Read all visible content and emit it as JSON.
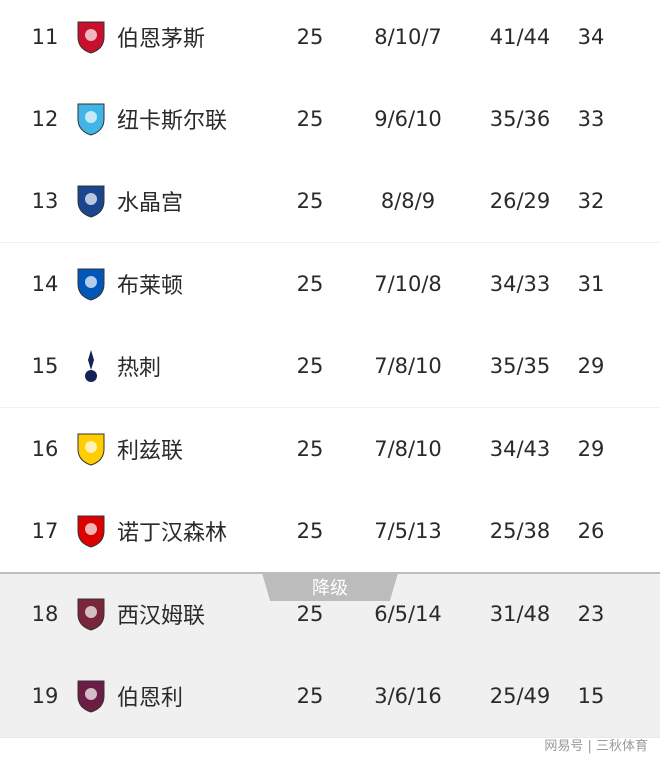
{
  "rows": [
    {
      "rank": "11",
      "team": "伯恩茅斯",
      "played": "25",
      "wdl": "8/10/7",
      "goals": "41/44",
      "points": "34",
      "logo": "bournemouth-crest-icon",
      "color": "#c8102e"
    },
    {
      "rank": "12",
      "team": "纽卡斯尔联",
      "played": "25",
      "wdl": "9/6/10",
      "goals": "35/36",
      "points": "33",
      "logo": "newcastle-crest-icon",
      "color": "#41b6e6"
    },
    {
      "rank": "13",
      "team": "水晶宫",
      "played": "25",
      "wdl": "8/8/9",
      "goals": "26/29",
      "points": "32",
      "logo": "crystal-palace-crest-icon",
      "color": "#1b458f"
    },
    {
      "rank": "14",
      "team": "布莱顿",
      "played": "25",
      "wdl": "7/10/8",
      "goals": "34/33",
      "points": "31",
      "logo": "brighton-crest-icon",
      "color": "#0057b8"
    },
    {
      "rank": "15",
      "team": "热刺",
      "played": "25",
      "wdl": "7/8/10",
      "goals": "35/35",
      "points": "29",
      "logo": "tottenham-crest-icon",
      "color": "#132257"
    },
    {
      "rank": "16",
      "team": "利兹联",
      "played": "25",
      "wdl": "7/8/10",
      "goals": "34/43",
      "points": "29",
      "logo": "leeds-crest-icon",
      "color": "#ffcd00"
    },
    {
      "rank": "17",
      "team": "诺丁汉森林",
      "played": "25",
      "wdl": "7/5/13",
      "goals": "25/38",
      "points": "26",
      "logo": "nottingham-forest-crest-icon",
      "color": "#dd0000"
    },
    {
      "rank": "18",
      "team": "西汉姆联",
      "played": "25",
      "wdl": "6/5/14",
      "goals": "31/48",
      "points": "23",
      "logo": "west-ham-crest-icon",
      "color": "#7a263a"
    },
    {
      "rank": "19",
      "team": "伯恩利",
      "played": "25",
      "wdl": "3/6/16",
      "goals": "25/49",
      "points": "15",
      "logo": "burnley-crest-icon",
      "color": "#6c1d45"
    }
  ],
  "relegation_label": "降级",
  "watermark": "网易号 | 三秋体育"
}
